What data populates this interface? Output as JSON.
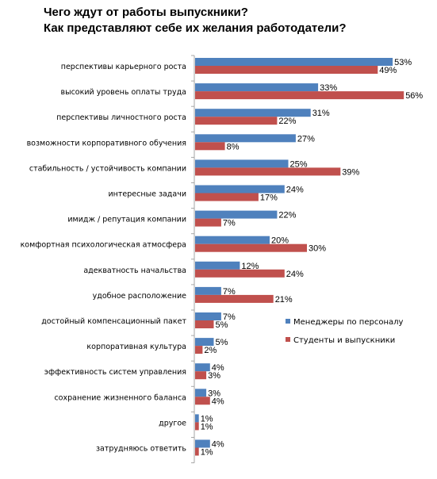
{
  "chart_data": {
    "type": "bar",
    "orientation": "horizontal",
    "title": "Чего ждут от работы выпускники?",
    "subtitle": "Как представляют себе их желания работодатели?",
    "categories": [
      "перспективы карьерного роста",
      "высокий уровень оплаты труда",
      "перспективы личностного роста",
      "возможности корпоративного обучения",
      "стабильность / устойчивость компании",
      "интересные задачи",
      "имидж / репутация компании",
      "комфортная психологическая атмосфера",
      "адекватность начальства",
      "удобное расположение",
      "достойный компенсационный пакет",
      "корпоративная культура",
      "эффективность систем управления",
      "сохранение жизненного баланса",
      "другое",
      "затрудняюсь ответить"
    ],
    "series": [
      {
        "name": "Менеджеры по персоналу",
        "color": "#4f81bd",
        "values": [
          53,
          33,
          31,
          27,
          25,
          24,
          22,
          20,
          12,
          7,
          7,
          5,
          4,
          3,
          1,
          4
        ]
      },
      {
        "name": "Студенты и выпускники",
        "color": "#c0504d",
        "values": [
          49,
          56,
          22,
          8,
          39,
          17,
          7,
          30,
          24,
          21,
          5,
          2,
          3,
          4,
          1,
          1
        ]
      }
    ],
    "value_suffix": "%",
    "xlim": [
      0,
      60
    ],
    "legend_position": "right",
    "axis_color": "#a6a6a6"
  }
}
